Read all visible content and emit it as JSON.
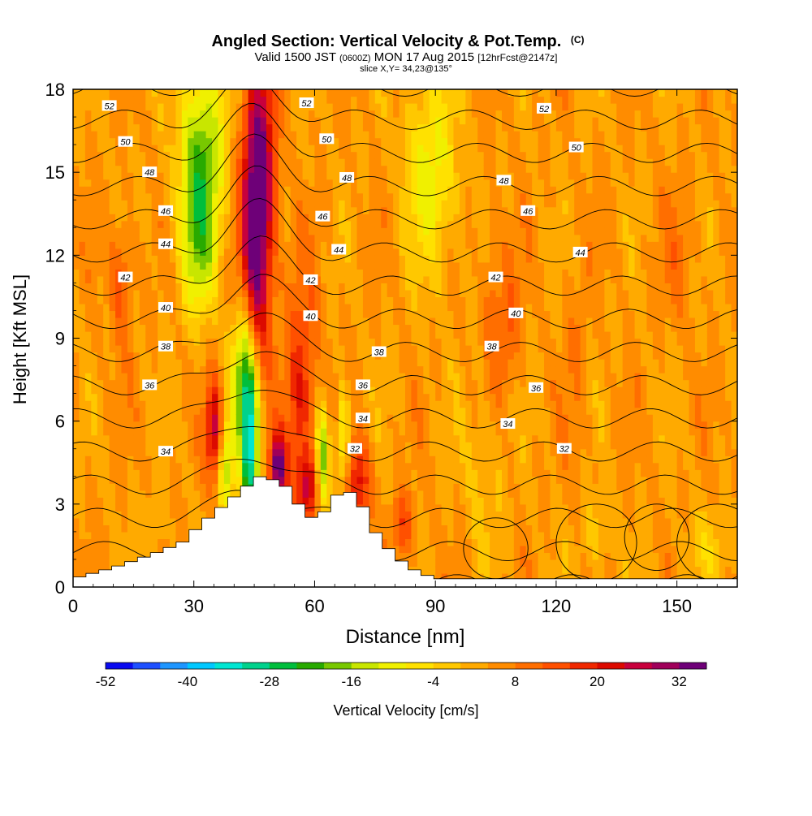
{
  "chart_data": {
    "type": "heatmap",
    "title": "Angled Section: Vertical Velocity & Pot.Temp.",
    "title_unit": "(C)",
    "subtitle_parts": [
      "Valid 1500 JST ",
      "(0600Z)",
      " MON 17 Aug 2015 ",
      "[12hrFcst@2147z]"
    ],
    "slice_label": "slice X,Y= 34,23@135°",
    "xlabel": "Distance [nm]",
    "ylabel": "Height [Kft MSL]",
    "xlim": [
      0,
      165
    ],
    "ylim": [
      0,
      18
    ],
    "x_ticks": [
      0,
      30,
      60,
      90,
      120,
      150
    ],
    "y_ticks": [
      0,
      3,
      6,
      9,
      12,
      15,
      18
    ],
    "colorbar": {
      "label": "Vertical Velocity [cm/s]",
      "range": [
        -52,
        36
      ],
      "tick_labels": [
        "-52",
        "-40",
        "-28",
        "-16",
        "-4",
        "8",
        "20",
        "32"
      ],
      "tick_values": [
        -52,
        -40,
        -28,
        -16,
        -4,
        8,
        20,
        32
      ],
      "colors": [
        "#0a0af0",
        "#1e50ff",
        "#1e96ff",
        "#00c8ff",
        "#00e6d2",
        "#00d28c",
        "#00be3c",
        "#28aa00",
        "#78c800",
        "#c8e600",
        "#f0f000",
        "#ffe100",
        "#ffc800",
        "#ffaa00",
        "#ff8c00",
        "#ff6e00",
        "#ff5000",
        "#f02800",
        "#dc0a00",
        "#c8003c",
        "#a0005a",
        "#6e0078"
      ]
    },
    "terrain": {
      "x": [
        0,
        10,
        20,
        27,
        32,
        37,
        42,
        46,
        52,
        56,
        60,
        63,
        67,
        71,
        75,
        80,
        85,
        90,
        165
      ],
      "height": [
        0.3,
        0.7,
        1.2,
        1.6,
        2.3,
        2.9,
        3.5,
        4.0,
        3.8,
        3.0,
        2.4,
        2.8,
        3.6,
        3.2,
        2.0,
        1.1,
        0.6,
        0.3,
        0.3
      ]
    },
    "theta_contours": [
      {
        "label": "32",
        "label_at": [
          [
            70,
            5.0
          ],
          [
            122,
            5.0
          ]
        ]
      },
      {
        "label": "34",
        "label_at": [
          [
            23,
            4.9
          ],
          [
            72,
            6.1
          ],
          [
            108,
            5.9
          ]
        ]
      },
      {
        "label": "36",
        "label_at": [
          [
            19,
            7.3
          ],
          [
            72,
            7.3
          ],
          [
            115,
            7.2
          ]
        ]
      },
      {
        "label": "38",
        "label_at": [
          [
            23,
            8.7
          ],
          [
            76,
            8.5
          ],
          [
            104,
            8.7
          ]
        ]
      },
      {
        "label": "40",
        "label_at": [
          [
            23,
            10.1
          ],
          [
            59,
            9.8
          ],
          [
            110,
            9.9
          ]
        ]
      },
      {
        "label": "42",
        "label_at": [
          [
            13,
            11.2
          ],
          [
            59,
            11.1
          ],
          [
            105,
            11.2
          ]
        ]
      },
      {
        "label": "44",
        "label_at": [
          [
            23,
            12.4
          ],
          [
            66,
            12.2
          ],
          [
            126,
            12.1
          ]
        ]
      },
      {
        "label": "46",
        "label_at": [
          [
            23,
            13.6
          ],
          [
            62,
            13.4
          ],
          [
            113,
            13.6
          ]
        ]
      },
      {
        "label": "48",
        "label_at": [
          [
            19,
            15.0
          ],
          [
            68,
            14.8
          ],
          [
            107,
            14.7
          ]
        ]
      },
      {
        "label": "50",
        "label_at": [
          [
            13,
            16.1
          ],
          [
            63,
            16.2
          ],
          [
            125,
            15.9
          ]
        ]
      },
      {
        "label": "52",
        "label_at": [
          [
            9,
            17.4
          ],
          [
            58,
            17.5
          ],
          [
            117,
            17.3
          ]
        ]
      }
    ]
  }
}
